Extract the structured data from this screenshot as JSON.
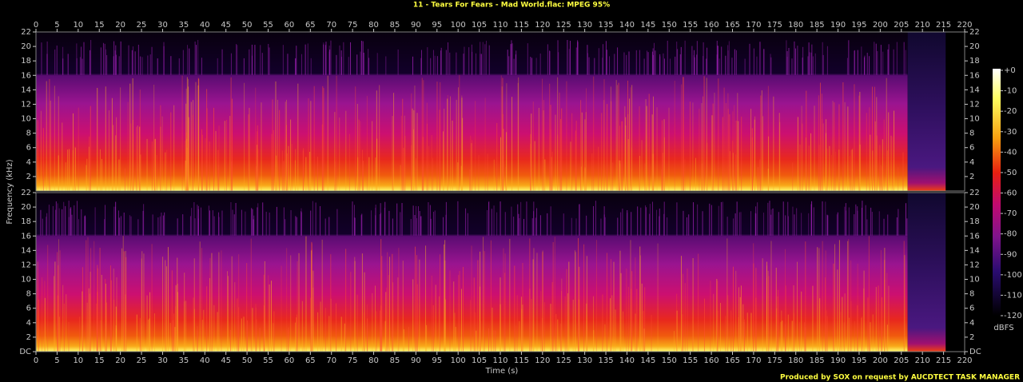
{
  "chart_data": {
    "type": "spectrogram",
    "title": "11 - Tears For Fears - Mad World.flac: MPEG 95%",
    "x_label": "Time (s)",
    "y_label": "Frequency (kHz)",
    "xlim": [
      0,
      220
    ],
    "xticks": [
      0,
      5,
      10,
      15,
      20,
      25,
      30,
      35,
      40,
      45,
      50,
      55,
      60,
      65,
      70,
      75,
      80,
      85,
      90,
      95,
      100,
      105,
      110,
      115,
      120,
      125,
      130,
      135,
      140,
      145,
      150,
      155,
      160,
      165,
      170,
      175,
      180,
      185,
      190,
      195,
      200,
      205,
      210,
      215,
      220
    ],
    "panels": [
      {
        "ylim": [
          0,
          22
        ],
        "yticks": [
          2,
          4,
          6,
          8,
          10,
          12,
          14,
          16,
          18,
          20,
          22
        ]
      },
      {
        "ylim": [
          0,
          22
        ],
        "yticks": [
          {
            "value": 0,
            "label": "DC"
          },
          2,
          4,
          6,
          8,
          10,
          12,
          14,
          16,
          18,
          20,
          22
        ]
      }
    ],
    "colorbar": {
      "label": "dBFS",
      "lim": [
        -120,
        0
      ],
      "ticks": [
        {
          "value": 0,
          "label": "+0"
        },
        -10,
        -20,
        -30,
        -40,
        -50,
        -60,
        -70,
        -80,
        -90,
        -100,
        -110,
        -120
      ]
    },
    "footer": "Produced by SOX on request by AUCDTECT TASK MANAGER"
  }
}
